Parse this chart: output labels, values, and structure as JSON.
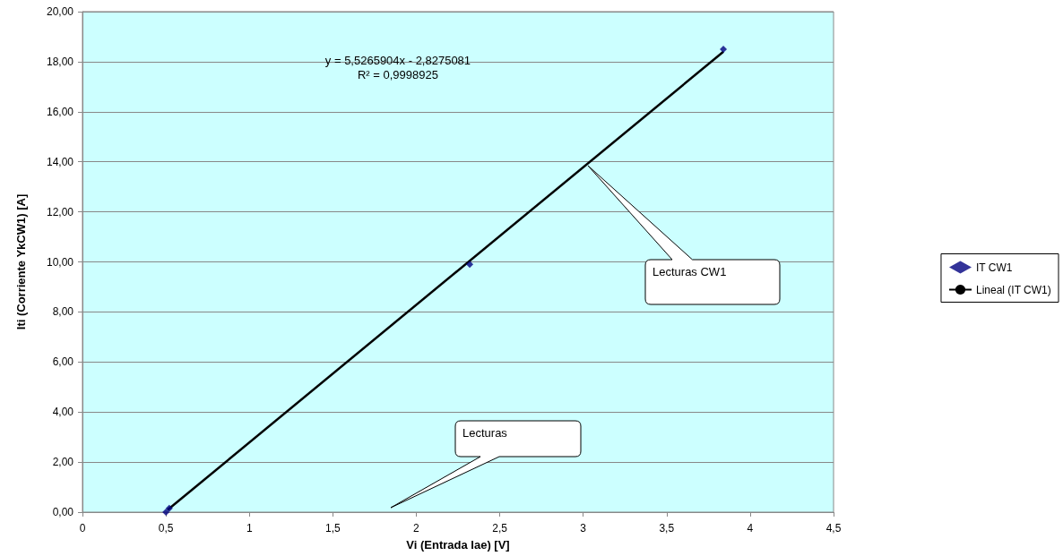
{
  "chart_data": {
    "type": "scatter",
    "xlabel": "Vi (Entrada Iae) [V]",
    "ylabel": "Iti (Corriente YkCW1) [A]",
    "xlim": [
      0,
      4.5
    ],
    "ylim": [
      0,
      20
    ],
    "xticks": [
      0,
      {
        "value": 0.5,
        "label": "0,5"
      },
      1,
      {
        "value": 1.5,
        "label": "1,5"
      },
      2,
      {
        "value": 2.5,
        "label": "2,5"
      },
      3,
      {
        "value": 3.5,
        "label": "3,5"
      },
      4,
      {
        "value": 4.5,
        "label": "4,5"
      }
    ],
    "yticks": [
      {
        "value": 0,
        "label": "0,00"
      },
      {
        "value": 2,
        "label": "2,00"
      },
      {
        "value": 4,
        "label": "4,00"
      },
      {
        "value": 6,
        "label": "6,00"
      },
      {
        "value": 8,
        "label": "8,00"
      },
      {
        "value": 10,
        "label": "10,00"
      },
      {
        "value": 12,
        "label": "12,00"
      },
      {
        "value": 14,
        "label": "14,00"
      },
      {
        "value": 16,
        "label": "16,00"
      },
      {
        "value": 18,
        "label": "18,00"
      },
      {
        "value": 20,
        "label": "20,00"
      }
    ],
    "grid": "y",
    "legend": "right",
    "marker": "diamond",
    "series": [
      {
        "name": "IT CW1",
        "color": "#000080",
        "x": [
          0.5,
          0.52,
          2.32,
          3.84
        ],
        "values": [
          0.0,
          0.15,
          9.9,
          18.5
        ]
      },
      {
        "name": "Lineal (IT CW1)",
        "type": "line",
        "color": "#000000",
        "marker": "none",
        "x": [
          0.51,
          3.84
        ],
        "values": [
          0.09,
          18.4
        ]
      }
    ],
    "annotations": [
      "y = 5,5265904x - 2,8275081\nR² = 0,9998925",
      "Lecturas CW1",
      "Lecturas"
    ]
  }
}
